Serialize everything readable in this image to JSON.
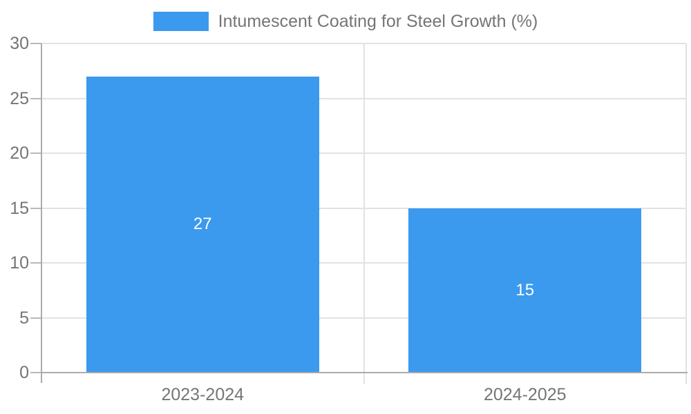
{
  "chart_data": {
    "type": "bar",
    "title": "",
    "legend_label": "Intumescent Coating for Steel Growth (%)",
    "legend_position": "top",
    "categories": [
      "2023-2024",
      "2024-2025"
    ],
    "values": [
      27,
      15
    ],
    "value_labels": [
      "27",
      "15"
    ],
    "xlabel": "",
    "ylabel": "",
    "ylim": [
      0,
      30
    ],
    "yticks": [
      0,
      5,
      10,
      15,
      20,
      25,
      30
    ],
    "grid": true,
    "bar_width_fraction": 0.722,
    "colors": {
      "bar": "#3B99EE",
      "value_label": "#FFFFFF",
      "axis_text": "#757575",
      "legend_text": "#757575",
      "gridline": "#E2E2E2",
      "tick_mark": "#B8B8B8",
      "axis_line": "#ABABAB"
    }
  }
}
